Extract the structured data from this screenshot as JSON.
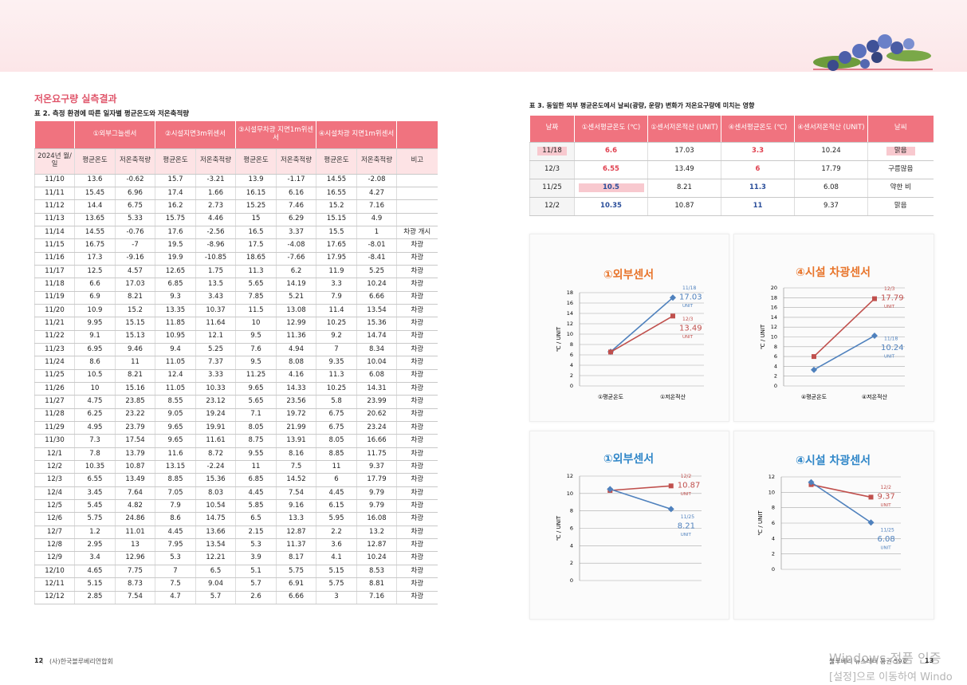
{
  "header": {
    "section_title": "저온요구량 실측결과",
    "table2_caption": "표 2. 측정 환경에 따른 일자별 평균온도와 저온축적량",
    "table3_caption": "표 3. 동일한 외부 평균온도에서 날씨(광량, 운량) 변화가 저온요구량에 미치는 영향"
  },
  "table2": {
    "group_headers": [
      "①외부그늘센서",
      "②시설지면3m위센서",
      "③시설무차광 지면1m위센서",
      "④시설차광 지면1m위센서"
    ],
    "date_header": "2024년 월/일",
    "sub_headers": [
      "평균온도",
      "저온축적량",
      "평균온도",
      "저온축적량",
      "평균온도",
      "저온축적량",
      "평균온도",
      "저온축적량"
    ],
    "remark_header": "비고",
    "rows": [
      [
        "11/10",
        13.6,
        -0.62,
        15.7,
        -3.21,
        13.9,
        -1.17,
        14.55,
        -2.08,
        null
      ],
      [
        "11/11",
        15.45,
        6.96,
        17.4,
        1.66,
        16.15,
        6.16,
        16.55,
        4.27,
        null
      ],
      [
        "11/12",
        14.4,
        6.75,
        16.2,
        2.73,
        15.25,
        7.46,
        15.2,
        7.16,
        null
      ],
      [
        "11/13",
        13.65,
        5.33,
        15.75,
        4.46,
        15,
        6.29,
        15.15,
        4.9,
        null
      ],
      [
        "11/14",
        14.55,
        -0.76,
        17.6,
        -2.56,
        16.5,
        3.37,
        15.5,
        1,
        "차광 개시"
      ],
      [
        "11/15",
        16.75,
        -7,
        19.5,
        -8.96,
        17.5,
        -4.08,
        17.65,
        -8.01,
        "차광"
      ],
      [
        "11/16",
        17.3,
        -9.16,
        19.9,
        -10.85,
        18.65,
        -7.66,
        17.95,
        -8.41,
        "차광"
      ],
      [
        "11/17",
        12.5,
        4.57,
        12.65,
        1.75,
        11.3,
        6.2,
        11.9,
        5.25,
        "차광"
      ],
      [
        "11/18",
        6.6,
        17.03,
        6.85,
        13.5,
        5.65,
        14.19,
        3.3,
        10.24,
        "차광"
      ],
      [
        "11/19",
        6.9,
        8.21,
        9.3,
        3.43,
        7.85,
        5.21,
        7.9,
        6.66,
        "차광"
      ],
      [
        "11/20",
        10.9,
        15.2,
        13.35,
        10.37,
        11.5,
        13.08,
        11.4,
        13.54,
        "차광"
      ],
      [
        "11/21",
        9.95,
        15.15,
        11.85,
        11.64,
        10,
        12.99,
        10.25,
        15.36,
        "차광"
      ],
      [
        "11/22",
        9.1,
        15.13,
        10.95,
        12.1,
        9.5,
        11.36,
        9.2,
        14.74,
        "차광"
      ],
      [
        "11/23",
        6.95,
        9.46,
        9.4,
        5.25,
        7.6,
        4.94,
        7,
        8.34,
        "차광"
      ],
      [
        "11/24",
        8.6,
        11,
        11.05,
        7.37,
        9.5,
        8.08,
        9.35,
        10.04,
        "차광"
      ],
      [
        "11/25",
        10.5,
        8.21,
        12.4,
        3.33,
        11.25,
        4.16,
        11.3,
        6.08,
        "차광"
      ],
      [
        "11/26",
        10,
        15.16,
        11.05,
        10.33,
        9.65,
        14.33,
        10.25,
        14.31,
        "차광"
      ],
      [
        "11/27",
        4.75,
        23.85,
        8.55,
        23.12,
        5.65,
        23.56,
        5.8,
        23.99,
        "차광"
      ],
      [
        "11/28",
        6.25,
        23.22,
        9.05,
        19.24,
        7.1,
        19.72,
        6.75,
        20.62,
        "차광"
      ],
      [
        "11/29",
        4.95,
        23.79,
        9.65,
        19.91,
        8.05,
        21.99,
        6.75,
        23.24,
        "차광"
      ],
      [
        "11/30",
        7.3,
        17.54,
        9.65,
        11.61,
        8.75,
        13.91,
        8.05,
        16.66,
        "차광"
      ],
      [
        "12/1",
        7.8,
        13.79,
        11.6,
        8.72,
        9.55,
        8.16,
        8.85,
        11.75,
        "차광"
      ],
      [
        "12/2",
        10.35,
        10.87,
        13.15,
        -2.24,
        11,
        7.5,
        11,
        9.37,
        "차광"
      ],
      [
        "12/3",
        6.55,
        13.49,
        8.85,
        15.36,
        6.85,
        14.52,
        6,
        17.79,
        "차광"
      ],
      [
        "12/4",
        3.45,
        7.64,
        7.05,
        8.03,
        4.45,
        7.54,
        4.45,
        9.79,
        "차광"
      ],
      [
        "12/5",
        5.45,
        4.82,
        7.9,
        10.54,
        5.85,
        9.16,
        6.15,
        9.79,
        "차광"
      ],
      [
        "12/6",
        5.75,
        24.86,
        8.6,
        14.75,
        6.5,
        13.3,
        5.95,
        16.08,
        "차광"
      ],
      [
        "12/7",
        1.2,
        11.01,
        4.45,
        13.66,
        2.15,
        12.87,
        2.2,
        13.2,
        "차광"
      ],
      [
        "12/8",
        2.95,
        13,
        7.95,
        13.54,
        5.3,
        11.37,
        3.6,
        12.87,
        "차광"
      ],
      [
        "12/9",
        3.4,
        12.96,
        5.3,
        12.21,
        3.9,
        8.17,
        4.1,
        10.24,
        "차광"
      ],
      [
        "12/10",
        4.65,
        7.75,
        7,
        6.5,
        5.1,
        5.75,
        5.15,
        8.53,
        "차광"
      ],
      [
        "12/11",
        5.15,
        8.73,
        7.5,
        9.04,
        5.7,
        6.91,
        5.75,
        8.81,
        "차광"
      ],
      [
        "12/12",
        2.85,
        7.54,
        4.7,
        5.7,
        2.6,
        6.66,
        3,
        7.16,
        "차광"
      ]
    ]
  },
  "table3": {
    "headers": [
      "날짜",
      "①센서평균온도 (℃)",
      "①센서저온적산 (UNIT)",
      "④센서평균온도 (℃)",
      "④센서저온적산 (UNIT)",
      "날씨"
    ],
    "rows": [
      [
        "11/18",
        6.6,
        17.03,
        3.3,
        10.24,
        "맑음"
      ],
      [
        "12/3",
        6.55,
        13.49,
        6,
        17.79,
        "구름많음"
      ],
      [
        "11/25",
        10.5,
        8.21,
        11.3,
        6.08,
        "약한 비"
      ],
      [
        "12/2",
        10.35,
        10.87,
        11,
        9.37,
        "맑음"
      ]
    ]
  },
  "charts": [
    {
      "type": "line",
      "title": "①외부센서",
      "title_color": "#e8742a",
      "y_label": "℃ / UNIT",
      "categories": [
        "①평균온도",
        "①저온적산"
      ],
      "ylim": [
        0,
        18
      ],
      "yticks": [
        0,
        2,
        4,
        6,
        8,
        10,
        12,
        14,
        16,
        18
      ],
      "unit_label": "UNIT",
      "series": [
        {
          "name": "11/18",
          "color": "#4f81bd",
          "marker": "diamond",
          "values": [
            6.6,
            17.03
          ]
        },
        {
          "name": "12/3",
          "color": "#c0504d",
          "marker": "square",
          "values": [
            6.55,
            13.49
          ]
        }
      ]
    },
    {
      "type": "line",
      "title": "④시설 차광센서",
      "title_color": "#e8742a",
      "y_label": "℃ / UNIT",
      "categories": [
        "④평균온도",
        "④저온적산"
      ],
      "ylim": [
        0,
        20
      ],
      "yticks": [
        0,
        2,
        4,
        6,
        8,
        10,
        12,
        14,
        16,
        18,
        20
      ],
      "unit_label": "UNIT",
      "series": [
        {
          "name": "12/3",
          "color": "#c0504d",
          "marker": "square",
          "values": [
            6,
            17.79
          ]
        },
        {
          "name": "11/18",
          "color": "#4f81bd",
          "marker": "diamond",
          "values": [
            3.3,
            10.24
          ]
        }
      ]
    },
    {
      "type": "line",
      "title": "①외부센서",
      "title_color": "#2f86c8",
      "y_label": "℃ / UNIT",
      "ylim": [
        0,
        12
      ],
      "yticks": [
        0,
        2,
        4,
        6,
        8,
        10,
        12
      ],
      "unit_label": "UNIT",
      "series": [
        {
          "name": "12/2",
          "color": "#c0504d",
          "marker": "square",
          "values": [
            10.35,
            10.87
          ]
        },
        {
          "name": "11/25",
          "color": "#4f81bd",
          "marker": "diamond",
          "values": [
            10.5,
            8.21
          ]
        }
      ]
    },
    {
      "type": "line",
      "title": "④시설 차광센서",
      "title_color": "#2f86c8",
      "y_label": "℃ / UNIT",
      "ylim": [
        0,
        12
      ],
      "yticks": [
        0,
        2,
        4,
        6,
        8,
        10,
        12
      ],
      "unit_label": "UNIT",
      "series": [
        {
          "name": "12/2",
          "color": "#c0504d",
          "marker": "square",
          "values": [
            11,
            9.37
          ]
        },
        {
          "name": "11/25",
          "color": "#4f81bd",
          "marker": "diamond",
          "values": [
            11.3,
            6.08
          ]
        }
      ]
    }
  ],
  "footer": {
    "left_page": "12",
    "left_org": "(사)한국블루베리연합회",
    "right_title": "블루베리 뉴스레터 통권 59호",
    "right_page": "13"
  },
  "watermark": {
    "line1": "Windows 정품 인증",
    "line2": "[설정]으로 이동하여 Windo"
  }
}
